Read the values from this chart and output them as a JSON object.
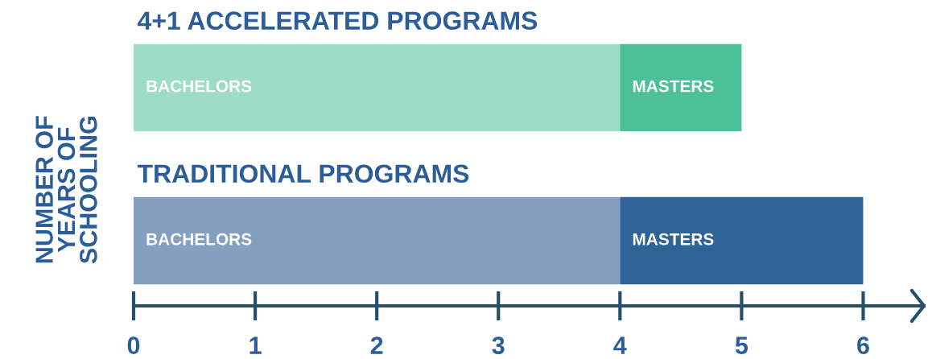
{
  "chart_data": {
    "type": "bar",
    "orientation": "horizontal",
    "stacked": true,
    "legend": false,
    "grid": false,
    "ylabel": "NUMBER OF\nYEARS OF\nSCHOOLING",
    "categories": [
      "4+1 ACCELERATED PROGRAMS",
      "TRADITIONAL PROGRAMS"
    ],
    "series": [
      {
        "name": "BACHELORS",
        "colors": [
          "#9fdcc8",
          "#84a0c0"
        ],
        "values": [
          4,
          4
        ]
      },
      {
        "name": "MASTERS",
        "colors": [
          "#4cc096",
          "#306396"
        ],
        "values": [
          1,
          2
        ]
      }
    ],
    "xlim": [
      0,
      6.5
    ],
    "xticks": [
      0,
      1,
      2,
      3,
      4,
      5,
      6
    ]
  }
}
